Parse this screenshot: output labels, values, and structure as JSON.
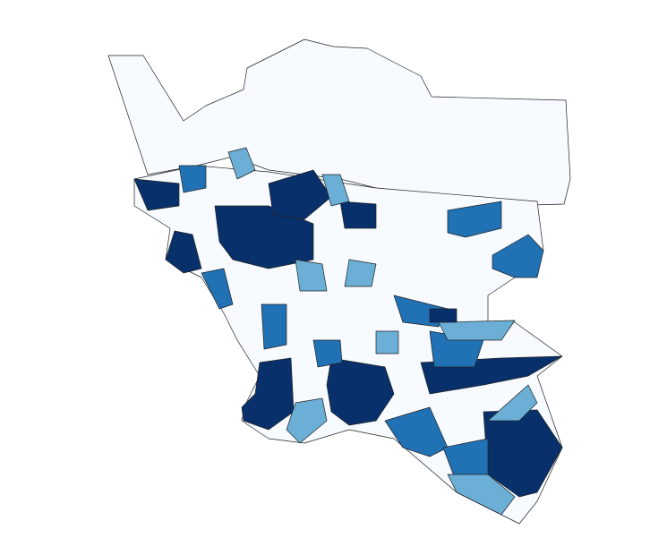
{
  "map": {
    "type": "choropleth",
    "palette": [
      "#f7fbff",
      "#6baed6",
      "#2171b5",
      "#08306b"
    ],
    "classes": [
      0,
      0,
      3,
      3,
      3,
      3,
      3,
      3,
      3,
      3,
      3,
      2,
      2,
      2,
      2,
      2,
      2,
      2,
      2,
      2,
      2,
      1,
      1,
      1,
      1,
      1,
      1,
      1,
      1,
      1,
      3
    ]
  }
}
